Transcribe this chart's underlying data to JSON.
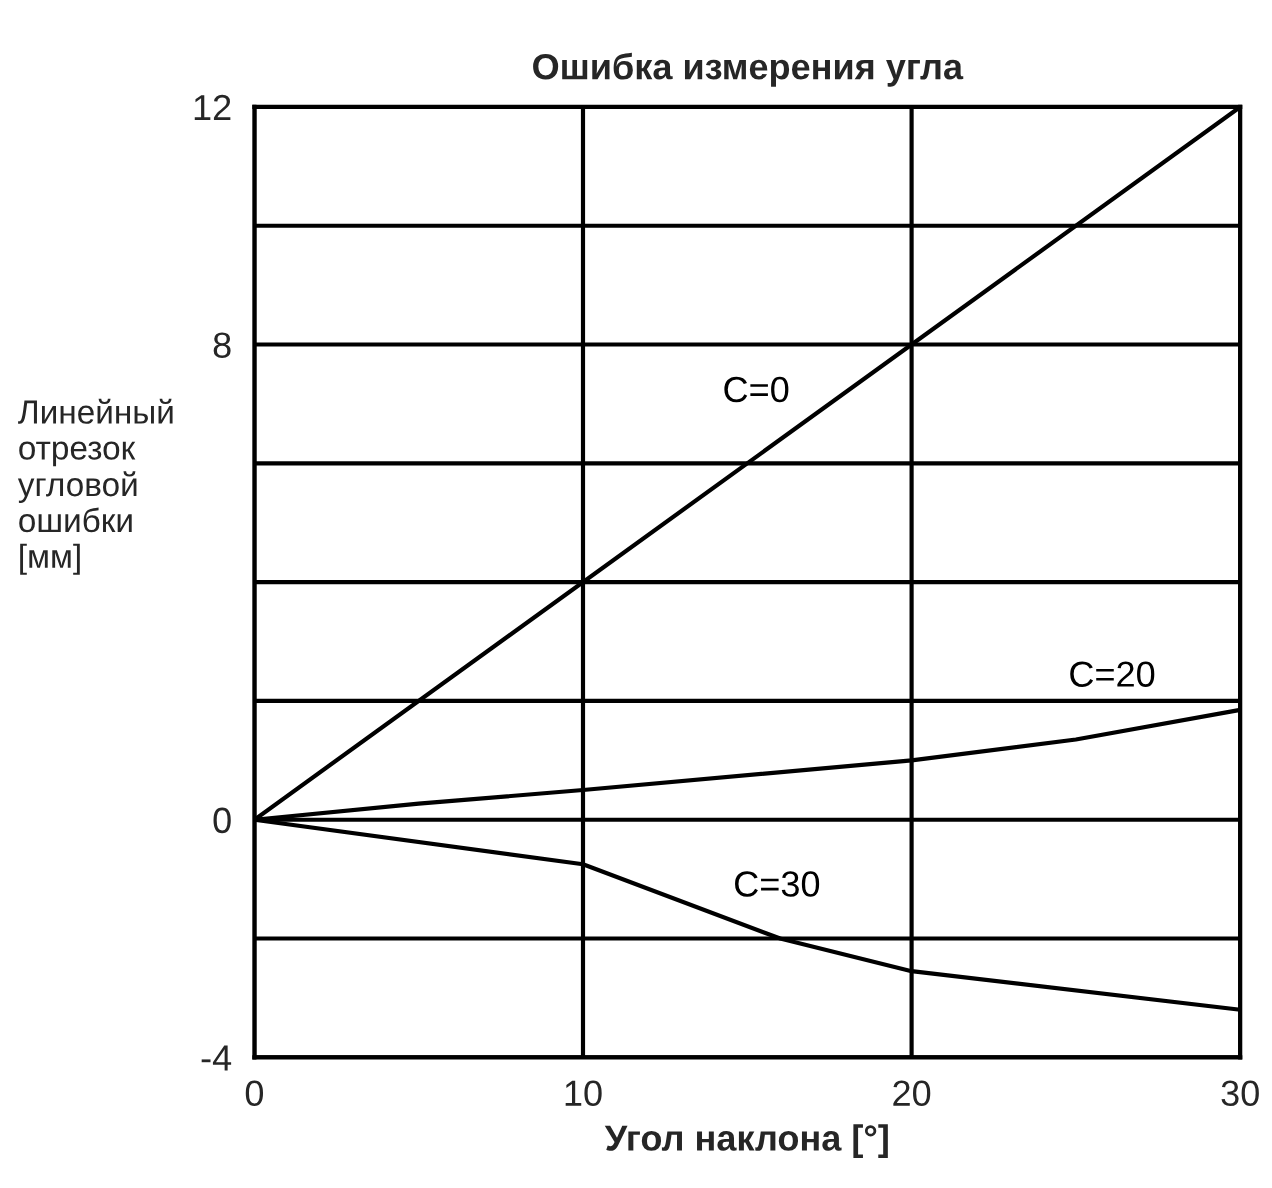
{
  "chart_data": {
    "type": "line",
    "title": "Ошибка измерения угла",
    "xlabel": "Угол наклона [°]",
    "ylabel": "Линейный\nотрезок\nугловой\nошибки\n[мм]",
    "xlim": [
      0,
      30
    ],
    "xticks": [
      0,
      10,
      20,
      30
    ],
    "ylim": [
      -4,
      12
    ],
    "yticks": [
      {
        "value": -4,
        "label": "-4"
      },
      {
        "value": -2,
        "label": null
      },
      0,
      {
        "value": 2,
        "label": null
      },
      {
        "value": 4,
        "label": null
      },
      {
        "value": 6,
        "label": null
      },
      8,
      {
        "value": 10,
        "label": null
      },
      12
    ],
    "grid": true,
    "marker": "none",
    "line_style": "solid",
    "series": [
      {
        "name": "C=0",
        "color": "#000000",
        "x": [
          0,
          30
        ],
        "values": [
          0,
          12
        ]
      },
      {
        "name": "C=20",
        "color": "#000000",
        "x": [
          0,
          5,
          10,
          20,
          25,
          30
        ],
        "values": [
          0,
          0.27,
          0.5,
          1.0,
          1.35,
          1.85
        ]
      },
      {
        "name": "C=30",
        "color": "#000000",
        "x": [
          0,
          10,
          16,
          20,
          30
        ],
        "values": [
          0,
          -0.75,
          -2,
          -2.55,
          -3.2
        ]
      }
    ]
  }
}
